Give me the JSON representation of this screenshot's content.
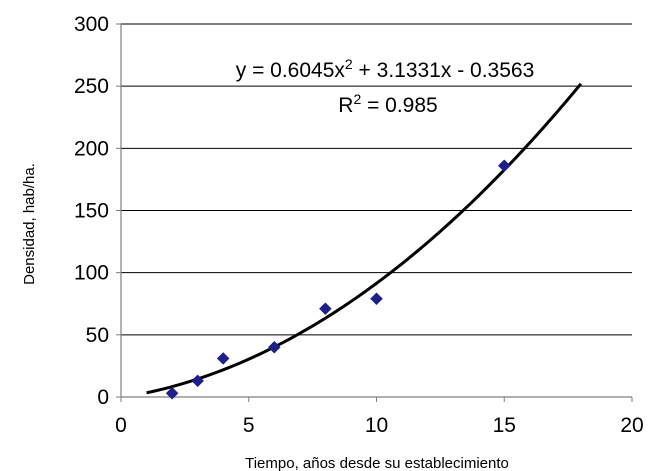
{
  "chart_data": {
    "type": "scatter",
    "title": "",
    "xlabel": "Tiempo, años desde su establecimiento",
    "ylabel": "Densidad, hab/ha.",
    "xlim": [
      0,
      20
    ],
    "ylim": [
      0,
      300
    ],
    "x_ticks": [
      "0",
      "5",
      "10",
      "15",
      "20"
    ],
    "y_ticks": [
      "0",
      "50",
      "100",
      "150",
      "200",
      "250",
      "300"
    ],
    "grid": "horizontal",
    "legend": "none",
    "series": [
      {
        "marker": "diamond",
        "color": "#1f1f8c",
        "x": [
          2,
          3,
          4,
          6,
          8,
          10,
          15
        ],
        "y": [
          3,
          13,
          31,
          40,
          71,
          79,
          186
        ]
      }
    ],
    "trendline": {
      "kind": "polynomial-order-2",
      "coefficients": {
        "a": 0.6045,
        "b": 3.1331,
        "c": -0.3563
      },
      "x_range": [
        1,
        18
      ],
      "color": "#000000",
      "equation_text": {
        "lhs": "y = 0.6045x",
        "exp": "2",
        "rhs": " + 3.1331x - 0.3563"
      },
      "r2_text": {
        "lhs": "R",
        "exp": "2",
        "rhs": " = 0.985"
      }
    }
  }
}
